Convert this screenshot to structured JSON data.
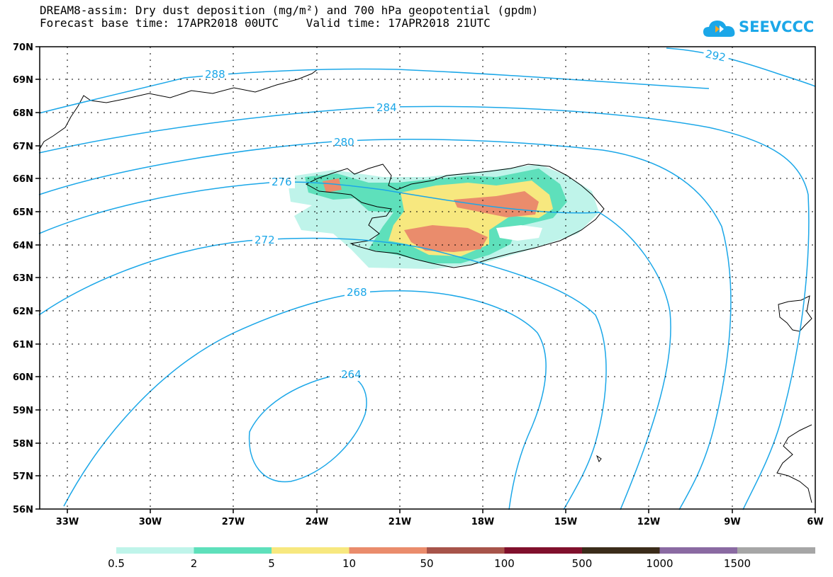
{
  "title_line1": "DREAM8-assim: Dry dust deposition (mg/m²) and 700 hPa geopotential (gpdm)",
  "title_line2": "Forecast base time: 17APR2018 00UTC    Valid time: 17APR2018 21UTC",
  "logo_text": "SEEVCCC",
  "lat_labels": [
    "70N",
    "69N",
    "68N",
    "67N",
    "66N",
    "65N",
    "64N",
    "63N",
    "62N",
    "61N",
    "60N",
    "59N",
    "58N",
    "57N",
    "56N"
  ],
  "lon_labels": [
    "33W",
    "30W",
    "27W",
    "24W",
    "21W",
    "18W",
    "15W",
    "12W",
    "9W",
    "6W"
  ],
  "colorbar": {
    "colors": [
      "#bff4ea",
      "#5ee0bb",
      "#f7e87f",
      "#ea8c6c",
      "#a7544a",
      "#80102c",
      "#3b2c1a",
      "#8a6aa2",
      "#a6a6a6"
    ],
    "labels": [
      "0.5",
      "2",
      "5",
      "10",
      "50",
      "100",
      "500",
      "1000",
      "1500"
    ]
  },
  "contour_labels": [
    "264",
    "268",
    "272",
    "276",
    "280",
    "284",
    "288",
    "292"
  ],
  "colors": {
    "contour": "#1ba7e8",
    "coast": "#000000",
    "grid": "#000000"
  }
}
